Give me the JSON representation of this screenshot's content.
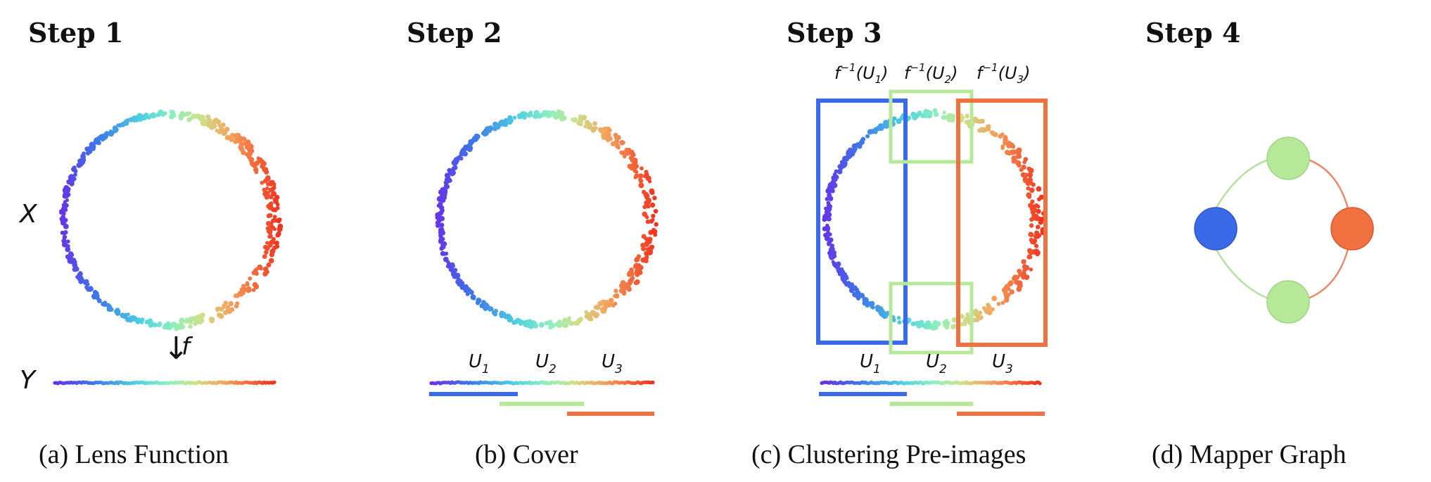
{
  "panels": [
    {
      "step_title": "Step 1",
      "caption": "(a) Lens Function"
    },
    {
      "step_title": "Step 2",
      "caption": "(b) Cover"
    },
    {
      "step_title": "Step 3",
      "caption": "(c) Clustering Pre-images"
    },
    {
      "step_title": "Step 4",
      "caption": "(d) Mapper Graph"
    }
  ],
  "labels": {
    "space_x": "X",
    "space_y": "Y",
    "lens_arrow": "↓",
    "lens_symbol": "f",
    "cover_sets": [
      "U",
      "U",
      "U"
    ],
    "cover_subscripts": [
      "1",
      "2",
      "3"
    ],
    "preimage_prefix": "f",
    "preimage_exponent": "−1",
    "preimage_open": "(",
    "preimage_close": ")"
  },
  "colors": {
    "blue": "#3b6ae8",
    "green": "#b6e89a",
    "orange": "#f07040",
    "edge_green": "#b6e0a0",
    "edge_orange": "#e88a68"
  },
  "graph": {
    "nodes": [
      {
        "id": "left",
        "color": "#3b6ae8"
      },
      {
        "id": "top",
        "color": "#b6e89a"
      },
      {
        "id": "right",
        "color": "#f07040"
      },
      {
        "id": "bottom",
        "color": "#b6e89a"
      }
    ]
  }
}
